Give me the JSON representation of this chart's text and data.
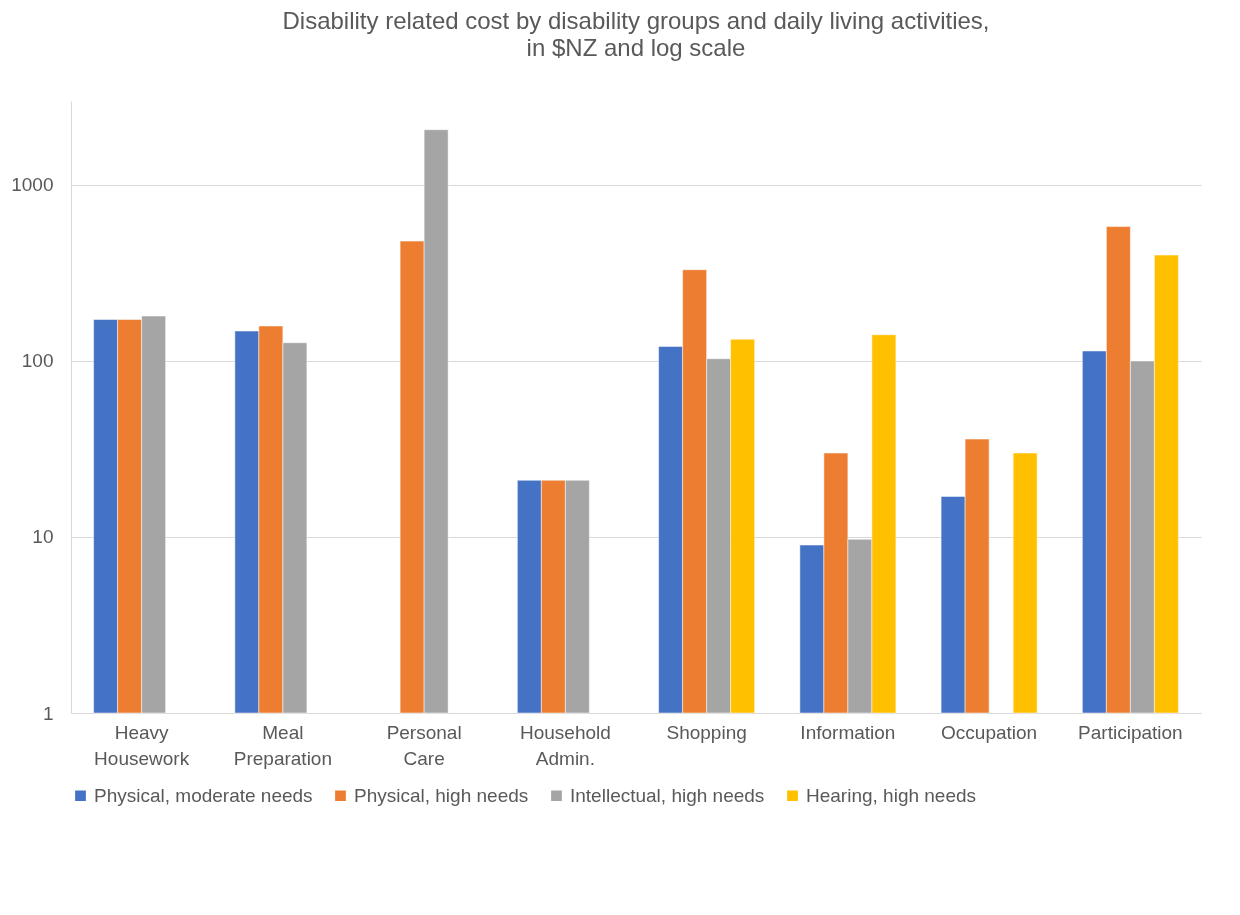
{
  "chart_data": {
    "type": "bar",
    "title": "Disability related cost by disability groups and daily living activities,",
    "subtitle": "in $NZ and log scale",
    "categories": [
      "Heavy Housework",
      "Meal Preparation",
      "Personal Care",
      "Household Admin.",
      "Shopping",
      "Information",
      "Occupation",
      "Participation"
    ],
    "series": [
      {
        "name": "Physical, moderate needs",
        "color": "#4472c4",
        "values": [
          172,
          148,
          null,
          21,
          121,
          9,
          17,
          114
        ]
      },
      {
        "name": "Physical, high needs",
        "color": "#ed7d31",
        "values": [
          172,
          158,
          480,
          21,
          330,
          30,
          36,
          580
        ]
      },
      {
        "name": "Intellectual, high needs",
        "color": "#a5a5a5",
        "values": [
          180,
          127,
          2060,
          21,
          103,
          9.7,
          null,
          100
        ]
      },
      {
        "name": "Hearing, high needs",
        "color": "#ffc000",
        "values": [
          null,
          null,
          null,
          null,
          133,
          141,
          30,
          400
        ]
      }
    ],
    "log": "y",
    "ylim": [
      1,
      3000
    ],
    "yticks": [
      1,
      10,
      100,
      1000
    ],
    "grid": "y",
    "legend": "bottom"
  }
}
